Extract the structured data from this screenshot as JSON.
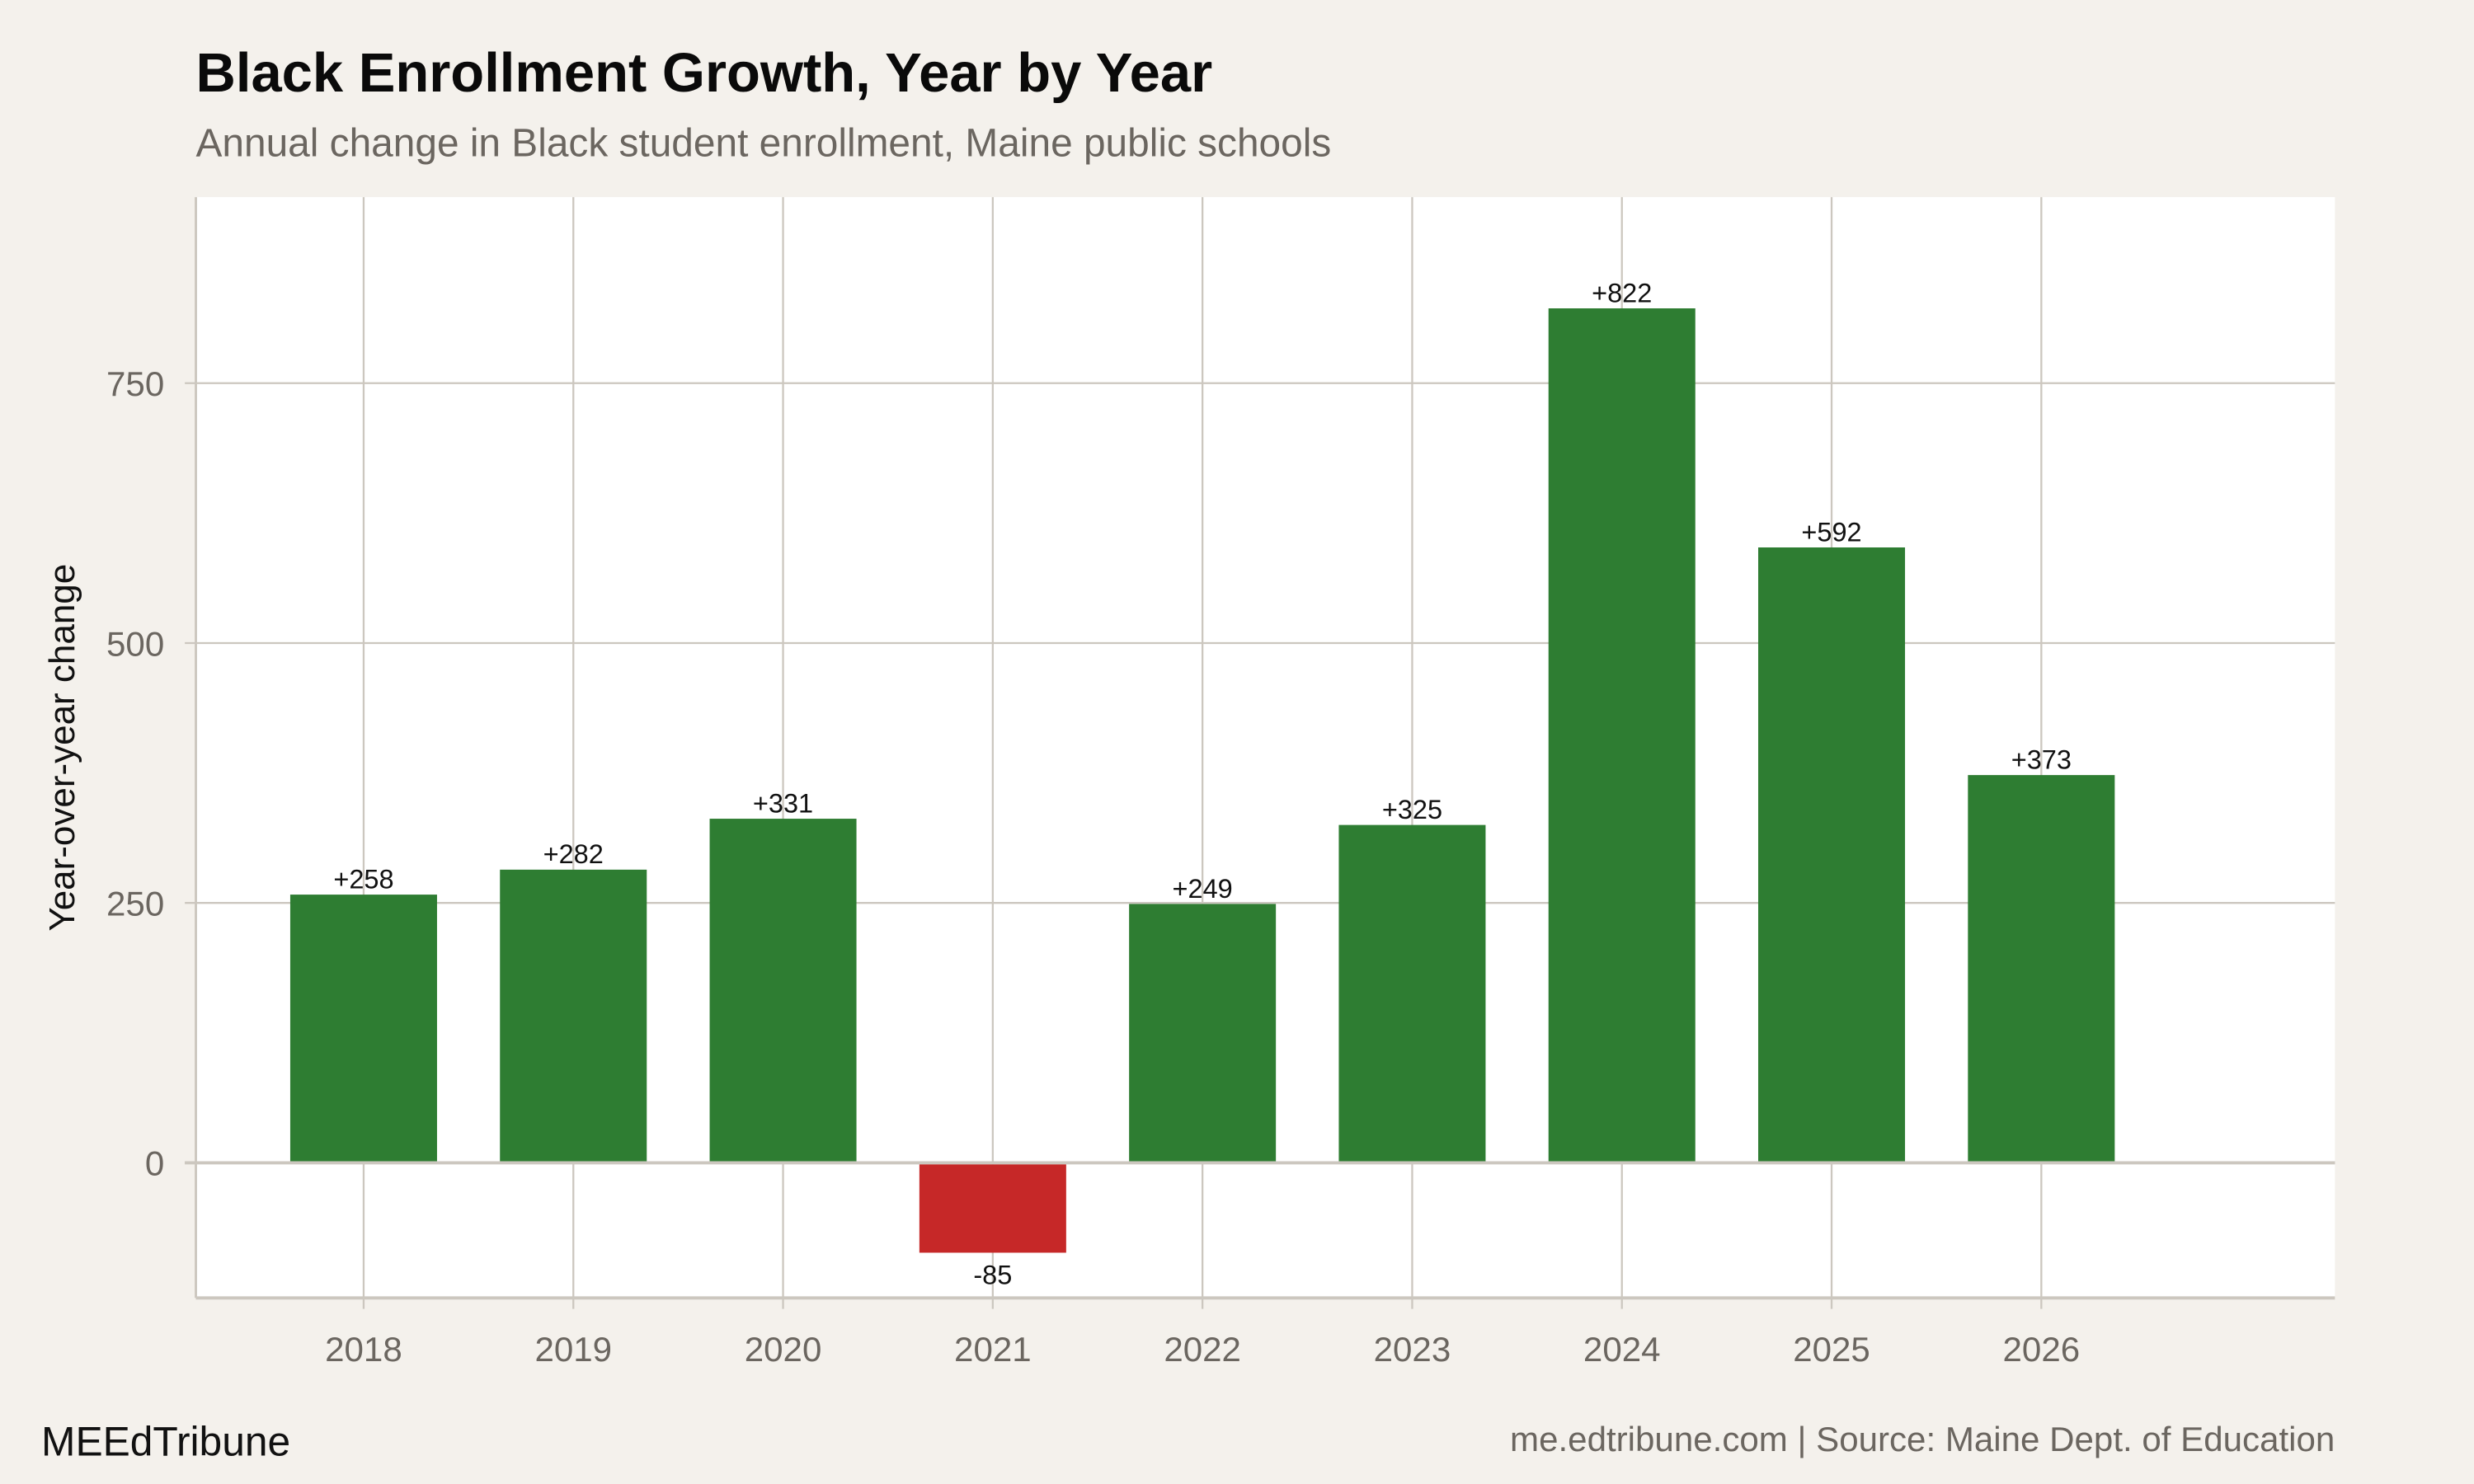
{
  "header": {
    "title": "Black Enrollment Growth, Year by Year",
    "subtitle": "Annual change in Black student enrollment, Maine public schools"
  },
  "footer": {
    "brand": "MEEdTribune",
    "caption": "me.edtribune.com | Source: Maine Dept. of Education"
  },
  "colors": {
    "background": "#f4f1ec",
    "panel": "#ffffff",
    "positive": "#2e7d32",
    "negative": "#c62828",
    "grid": "#ccc7bf"
  },
  "chart_data": {
    "type": "bar",
    "title": "Black Enrollment Growth, Year by Year",
    "subtitle": "Annual change in Black student enrollment, Maine public schools",
    "xlabel": "",
    "ylabel": "Year-over-year change",
    "categories": [
      "2018",
      "2019",
      "2020",
      "2021",
      "2022",
      "2023",
      "2024",
      "2025",
      "2026"
    ],
    "values": [
      258,
      282,
      331,
      -85,
      249,
      325,
      822,
      592,
      373
    ],
    "data_labels": [
      "+258",
      "+282",
      "+331",
      "-85",
      "+249",
      "+325",
      "+822",
      "+592",
      "+373"
    ],
    "yticks": [
      0,
      250,
      500,
      750
    ],
    "ylim": [
      -130,
      929
    ],
    "xlim": [
      2017.2,
      2027.4
    ],
    "grid": true,
    "legend": "none"
  }
}
